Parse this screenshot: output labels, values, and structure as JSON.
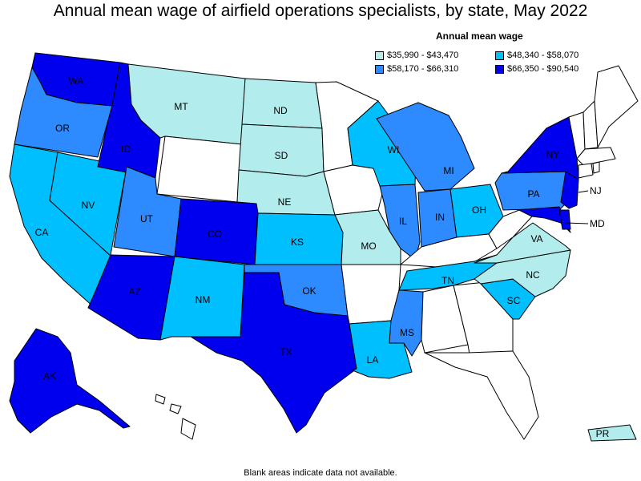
{
  "title": "Annual mean wage of airfield operations specialists, by state, May 2022",
  "legend": {
    "title": "Annual mean wage",
    "items": [
      {
        "label": "$35,990 - $43,470",
        "color": "#b2ecec"
      },
      {
        "label": "$48,340 - $58,070",
        "color": "#00bfff"
      },
      {
        "label": "$58,170 - $66,310",
        "color": "#2e8bff"
      },
      {
        "label": "$66,350 - $90,540",
        "color": "#0000ee"
      }
    ]
  },
  "footnote": "Blank areas indicate data not available.",
  "map_data": {
    "type": "choropleth",
    "blank_color": "#ffffff",
    "states": [
      {
        "abbr": "WA",
        "bin": 3
      },
      {
        "abbr": "OR",
        "bin": 2
      },
      {
        "abbr": "CA",
        "bin": 1
      },
      {
        "abbr": "NV",
        "bin": 1
      },
      {
        "abbr": "ID",
        "bin": 3
      },
      {
        "abbr": "MT",
        "bin": 0
      },
      {
        "abbr": "WY",
        "bin": null
      },
      {
        "abbr": "UT",
        "bin": 2
      },
      {
        "abbr": "AZ",
        "bin": 3
      },
      {
        "abbr": "CO",
        "bin": 3
      },
      {
        "abbr": "NM",
        "bin": 1
      },
      {
        "abbr": "ND",
        "bin": 0
      },
      {
        "abbr": "SD",
        "bin": 0
      },
      {
        "abbr": "NE",
        "bin": 0
      },
      {
        "abbr": "KS",
        "bin": 1
      },
      {
        "abbr": "OK",
        "bin": 2
      },
      {
        "abbr": "TX",
        "bin": 3
      },
      {
        "abbr": "MN",
        "bin": null
      },
      {
        "abbr": "IA",
        "bin": null
      },
      {
        "abbr": "MO",
        "bin": 0
      },
      {
        "abbr": "AR",
        "bin": null
      },
      {
        "abbr": "LA",
        "bin": 1
      },
      {
        "abbr": "WI",
        "bin": 1
      },
      {
        "abbr": "IL",
        "bin": 2
      },
      {
        "abbr": "MI",
        "bin": 2
      },
      {
        "abbr": "IN",
        "bin": 2
      },
      {
        "abbr": "OH",
        "bin": 1
      },
      {
        "abbr": "KY",
        "bin": null
      },
      {
        "abbr": "TN",
        "bin": 1
      },
      {
        "abbr": "MS",
        "bin": 2
      },
      {
        "abbr": "AL",
        "bin": null
      },
      {
        "abbr": "GA",
        "bin": null
      },
      {
        "abbr": "FL",
        "bin": null
      },
      {
        "abbr": "SC",
        "bin": 1
      },
      {
        "abbr": "NC",
        "bin": 0
      },
      {
        "abbr": "VA",
        "bin": 0
      },
      {
        "abbr": "WV",
        "bin": null
      },
      {
        "abbr": "PA",
        "bin": 2
      },
      {
        "abbr": "NY",
        "bin": 3
      },
      {
        "abbr": "NJ",
        "bin": 3
      },
      {
        "abbr": "MD",
        "bin": 3
      },
      {
        "abbr": "DE",
        "bin": 3
      },
      {
        "abbr": "VT",
        "bin": null
      },
      {
        "abbr": "NH",
        "bin": null
      },
      {
        "abbr": "ME",
        "bin": null
      },
      {
        "abbr": "MA",
        "bin": null
      },
      {
        "abbr": "CT",
        "bin": null
      },
      {
        "abbr": "RI",
        "bin": null
      },
      {
        "abbr": "AK",
        "bin": 3
      },
      {
        "abbr": "HI",
        "bin": null
      },
      {
        "abbr": "PR",
        "bin": 0
      }
    ]
  }
}
